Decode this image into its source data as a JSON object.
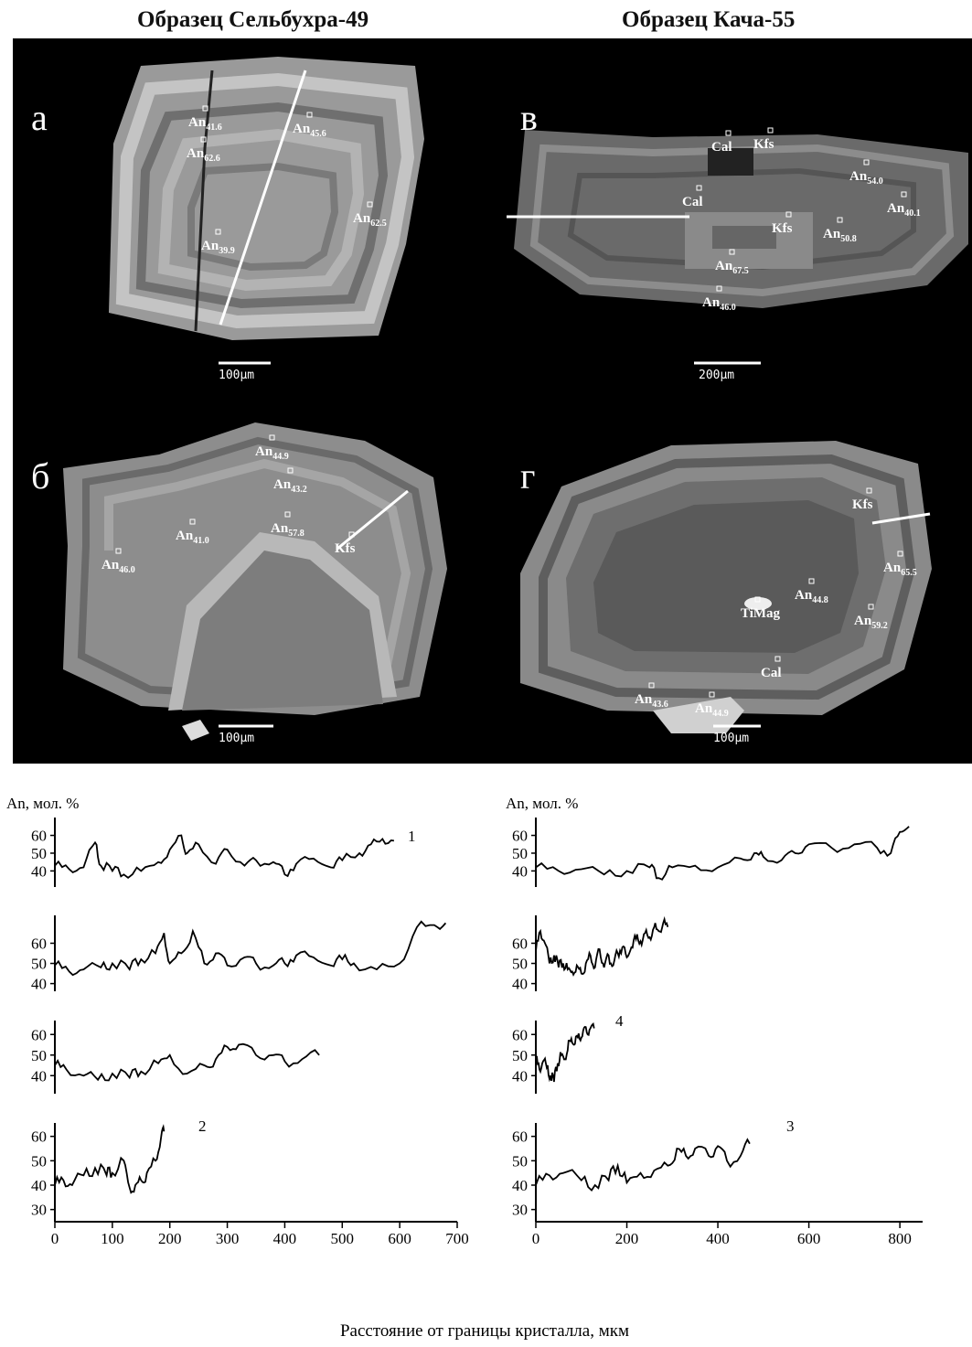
{
  "headers": {
    "left": "Образец Сельбухра-49",
    "right": "Образец Кача-55"
  },
  "panels": [
    {
      "label": "а",
      "scale": "100µm",
      "annotations": [
        {
          "base": "An",
          "sub": "41.6"
        },
        {
          "base": "An",
          "sub": "45.6"
        },
        {
          "base": "An",
          "sub": "62.6"
        },
        {
          "base": "An",
          "sub": "62.5"
        },
        {
          "base": "An",
          "sub": "39.9"
        }
      ]
    },
    {
      "label": "в",
      "scale": "200µm",
      "annotations": [
        {
          "base": "Cal",
          "sub": ""
        },
        {
          "base": "Kfs",
          "sub": ""
        },
        {
          "base": "An",
          "sub": "54.0"
        },
        {
          "base": "Cal",
          "sub": ""
        },
        {
          "base": "An",
          "sub": "40.1"
        },
        {
          "base": "Kfs",
          "sub": ""
        },
        {
          "base": "An",
          "sub": "50.8"
        },
        {
          "base": "An",
          "sub": "67.5"
        },
        {
          "base": "An",
          "sub": "46.0"
        }
      ]
    },
    {
      "label": "б",
      "scale": "100µm",
      "annotations": [
        {
          "base": "An",
          "sub": "44.9"
        },
        {
          "base": "An",
          "sub": "43.2"
        },
        {
          "base": "An",
          "sub": "41.0"
        },
        {
          "base": "An",
          "sub": "57.8"
        },
        {
          "base": "Kfs",
          "sub": ""
        },
        {
          "base": "An",
          "sub": "46.0"
        }
      ]
    },
    {
      "label": "г",
      "scale": "100µm",
      "annotations": [
        {
          "base": "Kfs",
          "sub": ""
        },
        {
          "base": "An",
          "sub": "65.5"
        },
        {
          "base": "An",
          "sub": "44.8"
        },
        {
          "base": "TiMag",
          "sub": ""
        },
        {
          "base": "An",
          "sub": "59.2"
        },
        {
          "base": "Cal",
          "sub": ""
        },
        {
          "base": "An",
          "sub": "43.6"
        },
        {
          "base": "An",
          "sub": "44.9"
        }
      ]
    }
  ],
  "chart_data": [
    {
      "type": "line",
      "ylabel": "An, мол. %",
      "xlabel": "Расстояние от границы кристалла, мкм",
      "xlim": [
        0,
        700
      ],
      "xticks": [
        0,
        100,
        200,
        300,
        400,
        500,
        600,
        700
      ],
      "profiles": [
        {
          "label": "1",
          "ylim": [
            33,
            68
          ],
          "yticks": [
            40,
            50,
            60
          ],
          "x": [
            0,
            25,
            50,
            70,
            80,
            100,
            120,
            150,
            180,
            200,
            220,
            230,
            250,
            280,
            300,
            330,
            350,
            380,
            400,
            420,
            450,
            480,
            500,
            530,
            550,
            570,
            590
          ],
          "y": [
            43,
            41,
            42,
            56,
            43,
            40,
            38,
            40,
            45,
            52,
            60,
            50,
            55,
            44,
            52,
            43,
            46,
            45,
            38,
            44,
            47,
            42,
            46,
            50,
            55,
            58,
            57
          ]
        },
        {
          "label": "",
          "ylim": [
            38,
            72
          ],
          "yticks": [
            40,
            50,
            60
          ],
          "x": [
            0,
            25,
            50,
            80,
            100,
            130,
            150,
            175,
            190,
            200,
            220,
            240,
            260,
            280,
            300,
            330,
            350,
            380,
            400,
            420,
            450,
            480,
            500,
            520,
            560,
            600,
            630,
            660,
            680
          ],
          "y": [
            49,
            46,
            47,
            48,
            50,
            47,
            52,
            55,
            65,
            50,
            55,
            66,
            50,
            55,
            49,
            53,
            50,
            49,
            50,
            54,
            53,
            49,
            52,
            50,
            47,
            50,
            68,
            69,
            70
          ]
        },
        {
          "label": "",
          "ylim": [
            33,
            65
          ],
          "yticks": [
            40,
            50,
            60
          ],
          "x": [
            0,
            20,
            50,
            75,
            100,
            130,
            150,
            180,
            200,
            230,
            260,
            280,
            300,
            320,
            350,
            380,
            400,
            430,
            460
          ],
          "y": [
            45,
            43,
            40,
            38,
            41,
            39,
            42,
            46,
            50,
            41,
            45,
            48,
            54,
            55,
            50,
            50,
            47,
            48,
            50
          ]
        },
        {
          "label": "2",
          "ylim": [
            28,
            64
          ],
          "yticks": [
            30,
            40,
            50,
            60
          ],
          "x": [
            0,
            15,
            30,
            50,
            70,
            90,
            100,
            120,
            130,
            140,
            150,
            160,
            175,
            185,
            190
          ],
          "y": [
            40,
            42,
            40,
            44,
            47,
            44,
            45,
            50,
            39,
            40,
            42,
            45,
            50,
            60,
            62
          ]
        }
      ]
    },
    {
      "type": "line",
      "ylabel": "An, мол. %",
      "xlabel": "Расстояние от границы кристалла, мкм",
      "xlim": [
        0,
        850
      ],
      "xticks": [
        0,
        200,
        400,
        600,
        800
      ],
      "profiles": [
        {
          "label": "",
          "ylim": [
            33,
            68
          ],
          "yticks": [
            40,
            50,
            60
          ],
          "x": [
            0,
            50,
            100,
            150,
            200,
            250,
            270,
            300,
            350,
            400,
            450,
            480,
            500,
            540,
            570,
            600,
            650,
            700,
            750,
            780,
            800,
            820
          ],
          "y": [
            42,
            40,
            41,
            38,
            40,
            42,
            36,
            42,
            43,
            42,
            47,
            50,
            48,
            46,
            50,
            55,
            53,
            55,
            53,
            50,
            62,
            65
          ]
        },
        {
          "label": "",
          "ylim": [
            38,
            72
          ],
          "yticks": [
            40,
            50,
            60
          ],
          "x": [
            0,
            10,
            20,
            30,
            40,
            50,
            60,
            70,
            80,
            90,
            100,
            110,
            120,
            130,
            140,
            150,
            160,
            170,
            180,
            190,
            200,
            210,
            220,
            230,
            240,
            250,
            260,
            270,
            280,
            290
          ],
          "y": [
            56,
            66,
            60,
            50,
            54,
            48,
            50,
            47,
            46,
            49,
            45,
            50,
            54,
            48,
            57,
            48,
            54,
            49,
            55,
            58,
            53,
            58,
            62,
            61,
            65,
            63,
            68,
            66,
            70,
            68
          ]
        },
        {
          "label": "4",
          "ylim": [
            33,
            65
          ],
          "yticks": [
            40,
            50,
            60
          ],
          "x": [
            0,
            8,
            16,
            24,
            32,
            40,
            48,
            56,
            64,
            72,
            80,
            88,
            96,
            104,
            112,
            120,
            128
          ],
          "y": [
            48,
            43,
            47,
            44,
            40,
            37,
            46,
            50,
            48,
            57,
            56,
            59,
            58,
            62,
            61,
            63,
            63
          ]
        },
        {
          "label": "3",
          "ylim": [
            28,
            64
          ],
          "yticks": [
            30,
            40,
            50,
            60
          ],
          "x": [
            0,
            30,
            60,
            100,
            130,
            160,
            180,
            200,
            230,
            260,
            290,
            310,
            330,
            350,
            380,
            400,
            420,
            450,
            470
          ],
          "y": [
            40,
            44,
            45,
            42,
            40,
            42,
            48,
            41,
            45,
            46,
            48,
            55,
            52,
            55,
            52,
            56,
            50,
            52,
            57
          ]
        }
      ]
    }
  ]
}
